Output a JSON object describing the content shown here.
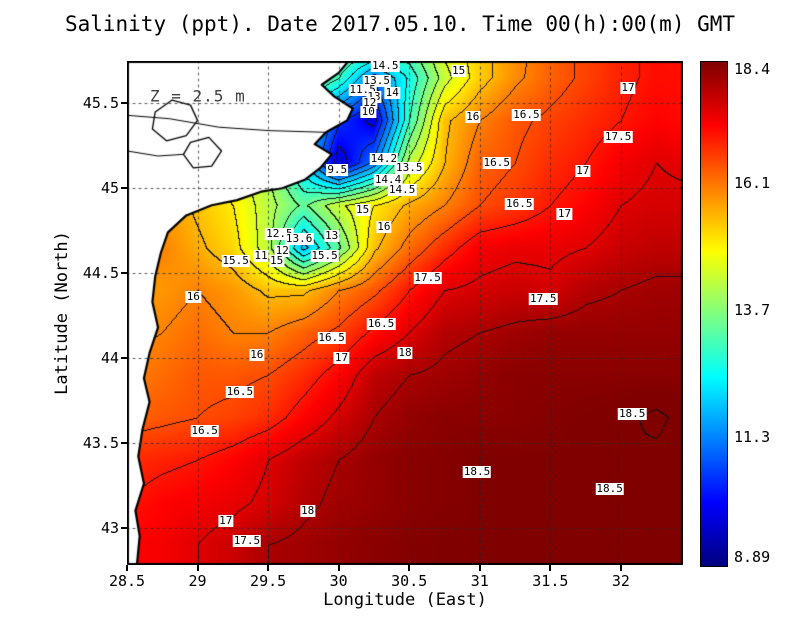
{
  "chart_data": {
    "type": "heatmap",
    "title": "Salinity (ppt). Date 2017.05.10. Time 00(h):00(m) GMT",
    "annotation": "Z = 2.5 m",
    "variable": "Salinity (ppt)",
    "date": "2017.05.10",
    "time": "00(h):00(m) GMT",
    "depth_m": 2.5,
    "contour_interval": 0.5,
    "axes": {
      "x_label": "Longitude (East)",
      "y_label": "Latitude (North)",
      "x_ticks": [
        28.5,
        29,
        29.5,
        30,
        30.5,
        31,
        31.5,
        32
      ],
      "y_ticks": [
        43,
        43.5,
        44,
        44.5,
        45,
        45.5
      ],
      "lon_range": [
        28.5,
        32.44
      ],
      "lat_range": [
        42.78,
        45.75
      ],
      "grid_dashed": true
    },
    "colorbar": {
      "min": 8.89,
      "max": 18.4,
      "labels": [
        {
          "label": "18.4",
          "value": 18.4
        },
        {
          "label": "16.1",
          "value": 16.1
        },
        {
          "label": "13.7",
          "value": 13.7
        },
        {
          "label": "11.3",
          "value": 11.3
        },
        {
          "label": "8.89",
          "value": 8.89
        }
      ]
    },
    "grid": {
      "lons": [
        28.5,
        28.75,
        29.0,
        29.25,
        29.5,
        29.75,
        30.0,
        30.25,
        30.5,
        30.75,
        31.0,
        31.25,
        31.5,
        31.75,
        32.0,
        32.25,
        32.5
      ],
      "lats": [
        45.9,
        45.65,
        45.4,
        45.15,
        44.9,
        44.65,
        44.4,
        44.15,
        43.9,
        43.65,
        43.4,
        43.15,
        42.9
      ],
      "values": [
        [
          15.0,
          15.0,
          15.0,
          15.0,
          15.0,
          14.8,
          14.2,
          14.3,
          13.8,
          14.8,
          15.3,
          15.8,
          16.3,
          16.6,
          16.9,
          17.1,
          17.0
        ],
        [
          15.0,
          15.0,
          15.0,
          15.0,
          14.8,
          14.0,
          13.0,
          11.2,
          12.6,
          14.3,
          15.3,
          15.9,
          16.3,
          16.6,
          16.9,
          17.1,
          17.1
        ],
        [
          15.0,
          15.0,
          15.0,
          14.8,
          14.0,
          12.5,
          10.6,
          9.8,
          13.0,
          15.4,
          16.0,
          16.4,
          16.6,
          16.8,
          17.0,
          17.2,
          17.1
        ],
        [
          15.2,
          15.2,
          15.0,
          14.6,
          14.0,
          12.2,
          9.6,
          11.2,
          14.2,
          15.5,
          16.3,
          16.5,
          16.8,
          17.0,
          17.3,
          17.5,
          17.4
        ],
        [
          15.8,
          15.8,
          15.4,
          15.0,
          14.2,
          13.4,
          14.4,
          15.0,
          15.6,
          16.0,
          16.5,
          16.7,
          17.0,
          17.2,
          17.5,
          17.6,
          17.6
        ],
        [
          16.0,
          16.0,
          15.6,
          15.2,
          14.2,
          11.8,
          13.4,
          15.4,
          16.2,
          16.8,
          17.3,
          17.4,
          17.4,
          17.5,
          17.7,
          17.8,
          17.8
        ],
        [
          15.8,
          15.8,
          16.0,
          15.8,
          15.4,
          15.4,
          16.0,
          16.4,
          17.0,
          17.5,
          17.6,
          17.7,
          17.6,
          17.9,
          18.0,
          18.1,
          18.1
        ],
        [
          15.9,
          16.0,
          16.2,
          16.0,
          16.0,
          16.3,
          16.6,
          17.1,
          17.5,
          17.9,
          18.0,
          18.1,
          18.2,
          18.2,
          18.2,
          18.2,
          18.2
        ],
        [
          16.0,
          16.2,
          16.4,
          16.4,
          16.5,
          16.8,
          17.2,
          17.8,
          18.0,
          18.1,
          18.2,
          18.3,
          18.3,
          18.3,
          18.3,
          18.3,
          18.3
        ],
        [
          16.3,
          16.4,
          16.5,
          16.6,
          16.8,
          17.2,
          17.6,
          18.0,
          18.2,
          18.3,
          18.3,
          18.3,
          18.35,
          18.4,
          18.45,
          18.55,
          18.4
        ],
        [
          16.8,
          16.9,
          17.0,
          17.2,
          17.5,
          17.8,
          18.0,
          18.2,
          18.3,
          18.35,
          18.4,
          18.4,
          18.4,
          18.45,
          18.5,
          18.45,
          18.4
        ],
        [
          17.0,
          17.2,
          17.3,
          17.4,
          17.6,
          17.9,
          18.1,
          18.2,
          18.3,
          18.35,
          18.4,
          18.4,
          18.45,
          18.5,
          18.45,
          18.4,
          18.4
        ],
        [
          17.2,
          17.3,
          17.5,
          17.7,
          18.0,
          18.1,
          18.2,
          18.3,
          18.35,
          18.4,
          18.4,
          18.4,
          18.4,
          18.4,
          18.4,
          18.4,
          18.4
        ]
      ]
    },
    "contour_labels": [
      {
        "t": "14.5",
        "lon": 30.33,
        "lat": 45.72
      },
      {
        "t": "13.5",
        "lon": 30.27,
        "lat": 45.63
      },
      {
        "t": "15",
        "lon": 30.85,
        "lat": 45.69
      },
      {
        "t": "11.5",
        "lon": 30.17,
        "lat": 45.58
      },
      {
        "t": "14",
        "lon": 30.38,
        "lat": 45.56
      },
      {
        "t": "13",
        "lon": 30.25,
        "lat": 45.54
      },
      {
        "t": "12",
        "lon": 30.22,
        "lat": 45.5
      },
      {
        "t": "10",
        "lon": 30.21,
        "lat": 45.45
      },
      {
        "t": "16",
        "lon": 30.95,
        "lat": 45.42
      },
      {
        "t": "16.5",
        "lon": 31.33,
        "lat": 45.43
      },
      {
        "t": "17",
        "lon": 32.05,
        "lat": 45.59
      },
      {
        "t": "9.5",
        "lon": 29.99,
        "lat": 45.11
      },
      {
        "t": "14.2",
        "lon": 30.32,
        "lat": 45.17
      },
      {
        "t": "13.5",
        "lon": 30.5,
        "lat": 45.12
      },
      {
        "t": "14.4",
        "lon": 30.35,
        "lat": 45.05
      },
      {
        "t": "14.5",
        "lon": 30.45,
        "lat": 44.99
      },
      {
        "t": "15",
        "lon": 30.17,
        "lat": 44.87
      },
      {
        "t": "16.5",
        "lon": 31.12,
        "lat": 45.15
      },
      {
        "t": "17.5",
        "lon": 31.98,
        "lat": 45.3
      },
      {
        "t": "17",
        "lon": 31.73,
        "lat": 45.1
      },
      {
        "t": "16",
        "lon": 30.32,
        "lat": 44.77
      },
      {
        "t": "16.5",
        "lon": 31.28,
        "lat": 44.91
      },
      {
        "t": "17",
        "lon": 31.6,
        "lat": 44.85
      },
      {
        "t": "12.5",
        "lon": 29.58,
        "lat": 44.73
      },
      {
        "t": "13.6",
        "lon": 29.72,
        "lat": 44.7
      },
      {
        "t": "13",
        "lon": 29.95,
        "lat": 44.72
      },
      {
        "t": "12",
        "lon": 29.6,
        "lat": 44.63
      },
      {
        "t": "11",
        "lon": 29.45,
        "lat": 44.6
      },
      {
        "t": "15",
        "lon": 29.56,
        "lat": 44.57
      },
      {
        "t": "15.5",
        "lon": 29.27,
        "lat": 44.57
      },
      {
        "t": "15.5",
        "lon": 29.9,
        "lat": 44.6
      },
      {
        "t": "16",
        "lon": 28.97,
        "lat": 44.36
      },
      {
        "t": "16.5",
        "lon": 30.3,
        "lat": 44.2
      },
      {
        "t": "17.5",
        "lon": 30.63,
        "lat": 44.47
      },
      {
        "t": "17.5",
        "lon": 31.45,
        "lat": 44.35
      },
      {
        "t": "16.5",
        "lon": 29.95,
        "lat": 44.12
      },
      {
        "t": "17",
        "lon": 30.02,
        "lat": 44.0
      },
      {
        "t": "16",
        "lon": 29.42,
        "lat": 44.02
      },
      {
        "t": "18",
        "lon": 30.47,
        "lat": 44.03
      },
      {
        "t": "16.5",
        "lon": 29.3,
        "lat": 43.8
      },
      {
        "t": "16.5",
        "lon": 29.05,
        "lat": 43.57
      },
      {
        "t": "18.5",
        "lon": 32.08,
        "lat": 43.67
      },
      {
        "t": "18.5",
        "lon": 30.98,
        "lat": 43.33
      },
      {
        "t": "18.5",
        "lon": 31.92,
        "lat": 43.23
      },
      {
        "t": "18",
        "lon": 29.78,
        "lat": 43.1
      },
      {
        "t": "17",
        "lon": 29.2,
        "lat": 43.04
      },
      {
        "t": "17.5",
        "lon": 29.35,
        "lat": 42.92
      }
    ],
    "coastline": [
      [
        30.07,
        45.75
      ],
      [
        30.0,
        45.68
      ],
      [
        29.88,
        45.61
      ],
      [
        29.97,
        45.54
      ],
      [
        30.1,
        45.47
      ],
      [
        30.06,
        45.4
      ],
      [
        29.91,
        45.33
      ],
      [
        29.83,
        45.26
      ],
      [
        29.95,
        45.2
      ],
      [
        29.87,
        45.12
      ],
      [
        29.76,
        45.05
      ],
      [
        29.6,
        45.0
      ],
      [
        29.45,
        44.98
      ],
      [
        29.28,
        44.93
      ],
      [
        29.1,
        44.9
      ],
      [
        28.92,
        44.84
      ],
      [
        28.79,
        44.74
      ],
      [
        28.74,
        44.62
      ],
      [
        28.7,
        44.48
      ],
      [
        28.68,
        44.33
      ],
      [
        28.72,
        44.18
      ],
      [
        28.66,
        44.03
      ],
      [
        28.62,
        43.88
      ],
      [
        28.66,
        43.74
      ],
      [
        28.61,
        43.58
      ],
      [
        28.58,
        43.42
      ],
      [
        28.62,
        43.26
      ],
      [
        28.56,
        43.1
      ],
      [
        28.59,
        42.95
      ],
      [
        28.57,
        42.78
      ]
    ],
    "lakes": [
      [
        [
          28.7,
          45.45
        ],
        [
          28.82,
          45.52
        ],
        [
          28.95,
          45.49
        ],
        [
          29.0,
          45.4
        ],
        [
          28.92,
          45.31
        ],
        [
          28.78,
          45.28
        ],
        [
          28.68,
          45.35
        ]
      ],
      [
        [
          28.95,
          45.27
        ],
        [
          29.08,
          45.3
        ],
        [
          29.17,
          45.22
        ],
        [
          29.1,
          45.13
        ],
        [
          28.97,
          45.12
        ],
        [
          28.9,
          45.2
        ]
      ]
    ],
    "rivers": [
      [
        [
          28.5,
          45.43
        ],
        [
          28.8,
          45.41
        ],
        [
          29.15,
          45.36
        ],
        [
          29.5,
          45.34
        ],
        [
          29.9,
          45.33
        ]
      ],
      [
        [
          28.5,
          45.22
        ],
        [
          28.72,
          45.19
        ],
        [
          28.9,
          45.2
        ]
      ]
    ]
  }
}
